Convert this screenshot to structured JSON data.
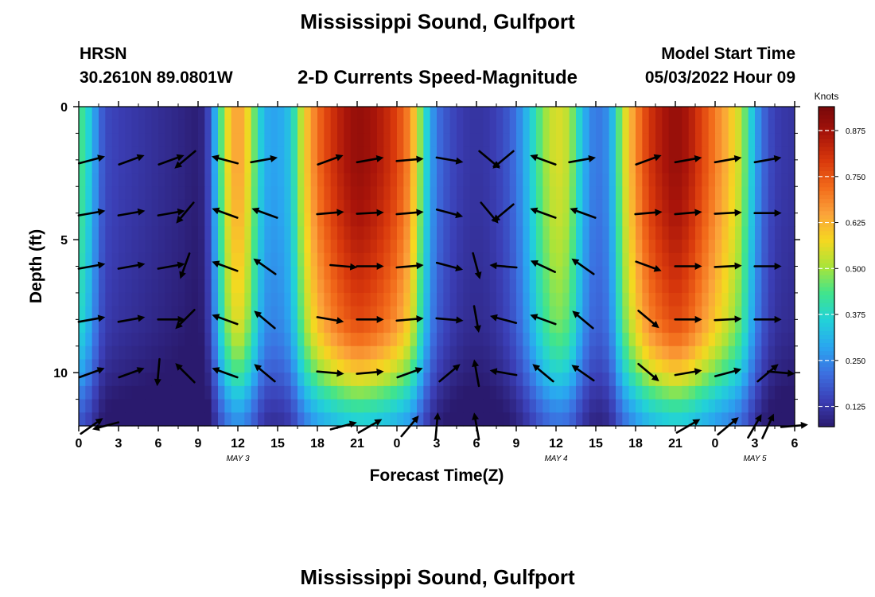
{
  "header": {
    "title": "Mississippi Sound, Gulfport",
    "model": "HRSN",
    "coords": "30.2610N  89.0801W",
    "product": "2-D Currents Speed-Magnitude",
    "start_label": "Model Start Time",
    "start_value": "05/03/2022 Hour 09"
  },
  "footer": {
    "title": "Mississippi Sound, Gulfport"
  },
  "colors": {
    "arrow": "#000000",
    "scale": [
      "#2a1a6e",
      "#3b3fb6",
      "#3c6fe0",
      "#2aa6f0",
      "#22d2d8",
      "#3fe48e",
      "#a8e43a",
      "#f5d820",
      "#fba23a",
      "#f26a1a",
      "#d8380c",
      "#a8140a",
      "#78080a"
    ]
  },
  "chart_data": {
    "type": "heatmap",
    "title": "2-D Currents Speed-Magnitude",
    "xlabel": "Forecast Time(Z)",
    "ylabel": "Depth (ft)",
    "xlim": [
      0,
      54
    ],
    "ylim": [
      0,
      12
    ],
    "x_tick_values": [
      0,
      3,
      6,
      9,
      12,
      15,
      18,
      21,
      24,
      27,
      30,
      33,
      36,
      39,
      42,
      45,
      48,
      51,
      54
    ],
    "x_tick_labels": [
      "0",
      "3",
      "6",
      "9",
      "12",
      "15",
      "18",
      "21",
      "0",
      "3",
      "6",
      "9",
      "12",
      "15",
      "18",
      "21",
      "0",
      "3",
      "6"
    ],
    "y_tick_values": [
      0,
      5,
      10
    ],
    "y_tick_labels": [
      "0",
      "5",
      "10"
    ],
    "date_labels": [
      {
        "x": 12,
        "text": "MAY 3"
      },
      {
        "x": 36,
        "text": "MAY 4"
      },
      {
        "x": 51,
        "text": "MAY 5"
      }
    ],
    "colorbar": {
      "title": "Knots",
      "range": [
        0.07,
        0.94
      ],
      "ticks": [
        0.125,
        0.25,
        0.375,
        0.5,
        0.625,
        0.75,
        0.875
      ],
      "tick_labels": [
        "0.125",
        "0.250",
        "0.375",
        "0.500",
        "0.625",
        "0.750",
        "0.875"
      ]
    },
    "speed_by_hour": [
      {
        "t": 0,
        "v": 0.45
      },
      {
        "t": 0.5,
        "v": 0.4
      },
      {
        "t": 1,
        "v": 0.32
      },
      {
        "t": 1.5,
        "v": 0.22
      },
      {
        "t": 2,
        "v": 0.16
      },
      {
        "t": 3,
        "v": 0.14
      },
      {
        "t": 4,
        "v": 0.13
      },
      {
        "t": 5,
        "v": 0.12
      },
      {
        "t": 6,
        "v": 0.11
      },
      {
        "t": 7,
        "v": 0.1
      },
      {
        "t": 8,
        "v": 0.09
      },
      {
        "t": 8.5,
        "v": 0.08
      },
      {
        "t": 9,
        "v": 0.08
      },
      {
        "t": 9.5,
        "v": 0.1
      },
      {
        "t": 10,
        "v": 0.2
      },
      {
        "t": 10.5,
        "v": 0.38
      },
      {
        "t": 11,
        "v": 0.52
      },
      {
        "t": 11.5,
        "v": 0.62
      },
      {
        "t": 12,
        "v": 0.66
      },
      {
        "t": 12.5,
        "v": 0.62
      },
      {
        "t": 13,
        "v": 0.52
      },
      {
        "t": 13.5,
        "v": 0.4
      },
      {
        "t": 14,
        "v": 0.3
      },
      {
        "t": 15,
        "v": 0.28
      },
      {
        "t": 16,
        "v": 0.34
      },
      {
        "t": 16.5,
        "v": 0.46
      },
      {
        "t": 17,
        "v": 0.58
      },
      {
        "t": 18,
        "v": 0.72
      },
      {
        "t": 19,
        "v": 0.8
      },
      {
        "t": 20,
        "v": 0.86
      },
      {
        "t": 21,
        "v": 0.9
      },
      {
        "t": 22,
        "v": 0.88
      },
      {
        "t": 23,
        "v": 0.84
      },
      {
        "t": 24,
        "v": 0.78
      },
      {
        "t": 25,
        "v": 0.68
      },
      {
        "t": 25.5,
        "v": 0.55
      },
      {
        "t": 26,
        "v": 0.42
      },
      {
        "t": 26.5,
        "v": 0.3
      },
      {
        "t": 27,
        "v": 0.22
      },
      {
        "t": 28,
        "v": 0.16
      },
      {
        "t": 29,
        "v": 0.13
      },
      {
        "t": 30,
        "v": 0.12
      },
      {
        "t": 31,
        "v": 0.13
      },
      {
        "t": 32,
        "v": 0.16
      },
      {
        "t": 33,
        "v": 0.22
      },
      {
        "t": 34,
        "v": 0.34
      },
      {
        "t": 35,
        "v": 0.48
      },
      {
        "t": 36,
        "v": 0.56
      },
      {
        "t": 37,
        "v": 0.52
      },
      {
        "t": 37.5,
        "v": 0.42
      },
      {
        "t": 38,
        "v": 0.32
      },
      {
        "t": 38.5,
        "v": 0.26
      },
      {
        "t": 39,
        "v": 0.22
      },
      {
        "t": 40,
        "v": 0.26
      },
      {
        "t": 40.5,
        "v": 0.38
      },
      {
        "t": 41,
        "v": 0.52
      },
      {
        "t": 42,
        "v": 0.68
      },
      {
        "t": 43,
        "v": 0.8
      },
      {
        "t": 44,
        "v": 0.86
      },
      {
        "t": 45,
        "v": 0.9
      },
      {
        "t": 46,
        "v": 0.86
      },
      {
        "t": 47,
        "v": 0.78
      },
      {
        "t": 48,
        "v": 0.7
      },
      {
        "t": 49,
        "v": 0.62
      },
      {
        "t": 50,
        "v": 0.52
      },
      {
        "t": 50.5,
        "v": 0.4
      },
      {
        "t": 51,
        "v": 0.3
      },
      {
        "t": 51.5,
        "v": 0.22
      },
      {
        "t": 52,
        "v": 0.17
      },
      {
        "t": 52.5,
        "v": 0.14
      },
      {
        "t": 53,
        "v": 0.13
      },
      {
        "t": 54,
        "v": 0.12
      }
    ],
    "depth_profile": [
      {
        "d": 0,
        "f": 1.0
      },
      {
        "d": 2,
        "f": 1.0
      },
      {
        "d": 4,
        "f": 0.97
      },
      {
        "d": 6,
        "f": 0.92
      },
      {
        "d": 8,
        "f": 0.86
      },
      {
        "d": 9,
        "f": 0.78
      },
      {
        "d": 10,
        "f": 0.66
      },
      {
        "d": 11,
        "f": 0.5
      },
      {
        "d": 12,
        "f": 0.38
      }
    ],
    "arrow_rows": [
      {
        "d": 2,
        "arrows": [
          {
            "t": 1,
            "dir": 15
          },
          {
            "t": 4,
            "dir": 20
          },
          {
            "t": 7,
            "dir": 20
          },
          {
            "t": 8,
            "dir": -140
          },
          {
            "t": 11,
            "dir": 165
          },
          {
            "t": 14,
            "dir": 10
          },
          {
            "t": 19,
            "dir": 20
          },
          {
            "t": 22,
            "dir": 10
          },
          {
            "t": 25,
            "dir": 5
          },
          {
            "t": 28,
            "dir": -10
          },
          {
            "t": 31,
            "dir": -40
          },
          {
            "t": 32,
            "dir": -140
          },
          {
            "t": 35,
            "dir": 160
          },
          {
            "t": 38,
            "dir": 10
          },
          {
            "t": 43,
            "dir": 20
          },
          {
            "t": 46,
            "dir": 10
          },
          {
            "t": 49,
            "dir": 10
          },
          {
            "t": 52,
            "dir": 10
          }
        ]
      },
      {
        "d": 4,
        "arrows": [
          {
            "t": 1,
            "dir": 10
          },
          {
            "t": 4,
            "dir": 10
          },
          {
            "t": 7,
            "dir": 10
          },
          {
            "t": 8,
            "dir": -130
          },
          {
            "t": 11,
            "dir": 160
          },
          {
            "t": 14,
            "dir": 160
          },
          {
            "t": 19,
            "dir": 5
          },
          {
            "t": 22,
            "dir": 3
          },
          {
            "t": 25,
            "dir": 5
          },
          {
            "t": 28,
            "dir": -15
          },
          {
            "t": 31,
            "dir": -50
          },
          {
            "t": 32,
            "dir": -140
          },
          {
            "t": 35,
            "dir": 160
          },
          {
            "t": 38,
            "dir": 160
          },
          {
            "t": 43,
            "dir": 5
          },
          {
            "t": 46,
            "dir": 5
          },
          {
            "t": 49,
            "dir": 3
          },
          {
            "t": 52,
            "dir": 0
          }
        ]
      },
      {
        "d": 6,
        "arrows": [
          {
            "t": 1,
            "dir": 10
          },
          {
            "t": 4,
            "dir": 10
          },
          {
            "t": 7,
            "dir": 10
          },
          {
            "t": 8,
            "dir": -110
          },
          {
            "t": 11,
            "dir": 160
          },
          {
            "t": 14,
            "dir": 145
          },
          {
            "t": 20,
            "dir": -5
          },
          {
            "t": 22,
            "dir": 0
          },
          {
            "t": 25,
            "dir": 5
          },
          {
            "t": 28,
            "dir": -15
          },
          {
            "t": 30,
            "dir": -75
          },
          {
            "t": 32,
            "dir": 175
          },
          {
            "t": 35,
            "dir": 155
          },
          {
            "t": 38,
            "dir": 145
          },
          {
            "t": 43,
            "dir": -20
          },
          {
            "t": 46,
            "dir": 0
          },
          {
            "t": 49,
            "dir": 3
          },
          {
            "t": 52,
            "dir": 0
          }
        ]
      },
      {
        "d": 8,
        "arrows": [
          {
            "t": 1,
            "dir": 10
          },
          {
            "t": 4,
            "dir": 10
          },
          {
            "t": 7,
            "dir": 0
          },
          {
            "t": 8,
            "dir": -135
          },
          {
            "t": 11,
            "dir": 160
          },
          {
            "t": 14,
            "dir": 140
          },
          {
            "t": 19,
            "dir": -10
          },
          {
            "t": 22,
            "dir": 0
          },
          {
            "t": 25,
            "dir": 5
          },
          {
            "t": 28,
            "dir": -5
          },
          {
            "t": 30,
            "dir": -80
          },
          {
            "t": 32,
            "dir": 165
          },
          {
            "t": 35,
            "dir": 160
          },
          {
            "t": 38,
            "dir": 140
          },
          {
            "t": 43,
            "dir": -40
          },
          {
            "t": 46,
            "dir": 0
          },
          {
            "t": 49,
            "dir": 3
          },
          {
            "t": 52,
            "dir": 0
          }
        ]
      },
      {
        "d": 10,
        "arrows": [
          {
            "t": 1,
            "dir": 20
          },
          {
            "t": 4,
            "dir": 20
          },
          {
            "t": 6,
            "dir": -95
          },
          {
            "t": 8,
            "dir": 135
          },
          {
            "t": 11,
            "dir": 160
          },
          {
            "t": 14,
            "dir": 140
          },
          {
            "t": 19,
            "dir": -5
          },
          {
            "t": 22,
            "dir": 5
          },
          {
            "t": 25,
            "dir": 20
          },
          {
            "t": 28,
            "dir": 40
          },
          {
            "t": 30,
            "dir": 100
          },
          {
            "t": 32,
            "dir": 170
          },
          {
            "t": 35,
            "dir": 140
          },
          {
            "t": 38,
            "dir": 145
          },
          {
            "t": 43,
            "dir": -40
          },
          {
            "t": 46,
            "dir": 10
          },
          {
            "t": 49,
            "dir": 15
          },
          {
            "t": 52,
            "dir": 40
          },
          {
            "t": 53,
            "dir": -5
          }
        ]
      },
      {
        "d": 12,
        "arrows": [
          {
            "t": 1,
            "dir": 35
          },
          {
            "t": 2,
            "dir": -165
          },
          {
            "t": 20,
            "dir": 15
          },
          {
            "t": 22,
            "dir": 30
          },
          {
            "t": 25,
            "dir": 50
          },
          {
            "t": 27,
            "dir": 85
          },
          {
            "t": 30,
            "dir": 100
          },
          {
            "t": 46,
            "dir": 30
          },
          {
            "t": 49,
            "dir": 40
          },
          {
            "t": 51,
            "dir": 60
          },
          {
            "t": 52,
            "dir": 65
          },
          {
            "t": 54,
            "dir": 5
          }
        ]
      }
    ]
  }
}
